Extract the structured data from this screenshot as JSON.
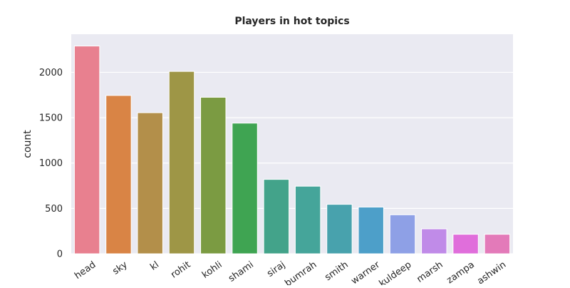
{
  "chart_data": {
    "type": "bar",
    "title": "Players in hot topics",
    "xlabel": "",
    "ylabel": "count",
    "ylim": [
      0,
      2420
    ],
    "yticks": [
      0,
      500,
      1000,
      1500,
      2000
    ],
    "grid": true,
    "categories": [
      "head",
      "sky",
      "kl",
      "rohit",
      "kohli",
      "shami",
      "siraj",
      "bumrah",
      "smith",
      "warner",
      "kuldeep",
      "marsh",
      "zampa",
      "ashwin"
    ],
    "values": [
      2290,
      1745,
      1555,
      2010,
      1725,
      1440,
      820,
      745,
      545,
      515,
      430,
      275,
      215,
      215
    ],
    "colors": [
      "#e8808f",
      "#d98445",
      "#b38f4a",
      "#9e9646",
      "#7b9b42",
      "#3fa452",
      "#43a38a",
      "#45a59a",
      "#48a2ad",
      "#4d9fc9",
      "#8ea0e6",
      "#c08be8",
      "#e06edb",
      "#e37ab9"
    ],
    "background": "#eaeaf2",
    "grid_color": "#ffffff"
  }
}
